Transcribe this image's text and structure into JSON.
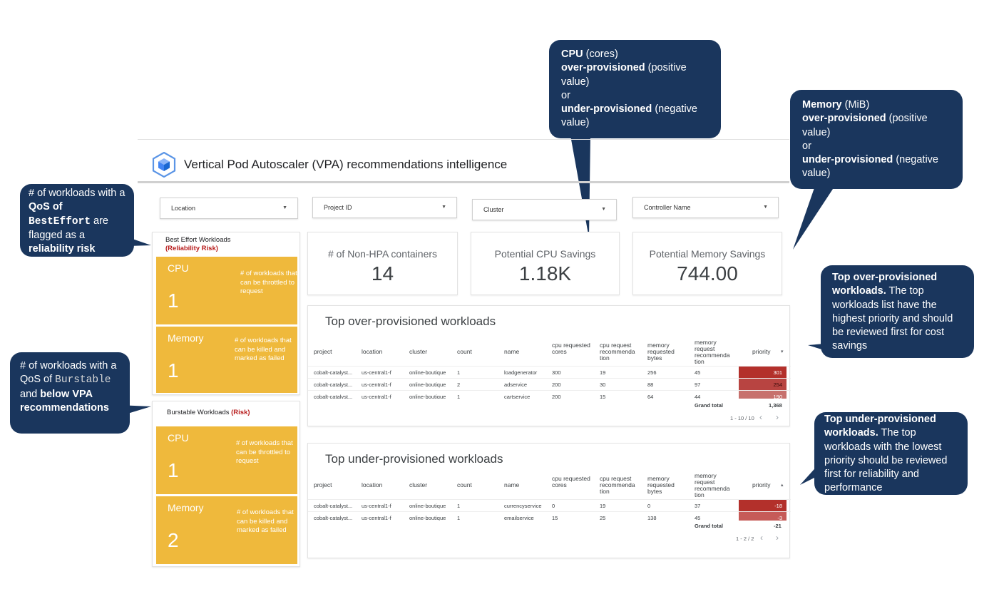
{
  "dashboard": {
    "title": "Vertical Pod Autoscaler (VPA) recommendations intelligence",
    "logo_icon": "gke-cube-icon"
  },
  "filters": [
    {
      "label": "Location"
    },
    {
      "label": "Project ID"
    },
    {
      "label": "Cluster"
    },
    {
      "label": "Controller Name"
    }
  ],
  "best_effort": {
    "title": "Best Effort Workloads",
    "risk_label": "(Reliability Risk)",
    "cpu": {
      "label": "CPU",
      "value": "1",
      "desc": "# of workloads that can be throttled to request"
    },
    "memory": {
      "label": "Memory",
      "value": "1",
      "desc": "# of workloads that can be killed and marked as failed"
    }
  },
  "burstable": {
    "title": "Burstable Workloads",
    "risk_label": "(Risk)",
    "cpu": {
      "label": "CPU",
      "value": "1",
      "desc": "# of workloads that can be throttled to request"
    },
    "memory": {
      "label": "Memory",
      "value": "2",
      "desc": "# of workloads that can be killed and marked as failed"
    }
  },
  "kpis": [
    {
      "label": "# of Non-HPA containers",
      "value": "14"
    },
    {
      "label": "Potential CPU Savings",
      "value": "1.18K"
    },
    {
      "label": "Potential Memory Savings",
      "value": "744.00"
    }
  ],
  "columns": [
    "project",
    "location",
    "cluster",
    "count",
    "name",
    "cpu requested cores",
    "cpu request recommenda tion",
    "memory requested bytes",
    "memory request recommenda tion",
    "priority"
  ],
  "over_table": {
    "title": "Top over-provisioned workloads",
    "sort_icon": "▾",
    "rows": [
      [
        "cobalt-catalyst...",
        "us-central1-f",
        "online-boutique",
        "1",
        "loadgenerator",
        "300",
        "19",
        "256",
        "45",
        "301"
      ],
      [
        "cobalt-catalyst...",
        "us-central1-f",
        "online-boutique",
        "2",
        "adservice",
        "200",
        "30",
        "88",
        "97",
        "254"
      ],
      [
        "cobalt-catalyst...",
        "us-central1-f",
        "online-boutique",
        "1",
        "cartservice",
        "200",
        "15",
        "64",
        "44",
        "190"
      ]
    ],
    "priority_colors": [
      "#b3302b",
      "#b84441",
      "#c7716d"
    ],
    "grand_total_label": "Grand total",
    "grand_total_value": "1,368",
    "pager": "1 - 10 / 10"
  },
  "under_table": {
    "title": "Top under-provisioned workloads",
    "sort_icon": "▴",
    "rows": [
      [
        "cobalt-catalyst...",
        "us-central1-f",
        "online-boutique",
        "1",
        "currencyservice",
        "0",
        "19",
        "0",
        "37",
        "-18"
      ],
      [
        "cobalt-catalyst...",
        "us-central1-f",
        "online-boutique",
        "1",
        "emailservice",
        "15",
        "25",
        "138",
        "45",
        "-3"
      ]
    ],
    "priority_colors": [
      "#b3302b",
      "#c65b58"
    ],
    "grand_total_label": "Grand total",
    "grand_total_value": "-21",
    "pager": "1 - 2 / 2"
  },
  "callouts": {
    "best_effort": {
      "p1": "# of workloads with a ",
      "b1": "QoS of",
      "code": "BestEffort",
      "p2": " are flagged as a ",
      "b2": "reliability risk"
    },
    "burstable": {
      "p1": "# of workloads with a QoS of ",
      "code": "Burstable",
      "p2": " and ",
      "b1": "below VPA recommendations"
    },
    "cpu": {
      "b1": "CPU",
      "p1": " (cores)",
      "b2": "over-provisioned",
      "p2": " (positive value)",
      "or": "or",
      "b3": "under-provisioned",
      "p3": " (negative value)"
    },
    "memory": {
      "b1": "Memory",
      "p1": " (MiB)",
      "b2": "over-provisioned",
      "p2": " (positive value)",
      "or": "or",
      "b3": "under-provisioned",
      "p3": " (negative value)"
    },
    "top_over": {
      "b1": "Top over-provisioned workloads.",
      "p1": " The top workloads list have the highest priority and should be reviewed first for cost savings"
    },
    "top_under": {
      "b1": "Top under-provisioned workloads.",
      "p1": " The top workloads with the lowest priority should be reviewed first for reliability and performance"
    }
  },
  "colors": {
    "callout": "#1a365d",
    "tile": "#efb93c",
    "risk": "#b71c1c"
  }
}
